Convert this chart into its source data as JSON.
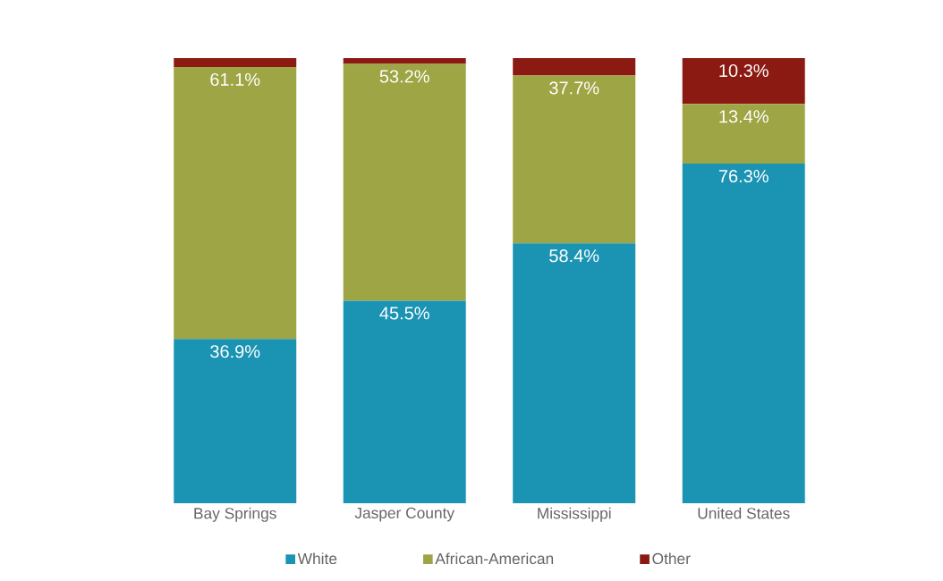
{
  "chart_data": {
    "type": "bar",
    "stacked": true,
    "categories": [
      "Bay Springs",
      "Jasper County",
      "Mississippi",
      "United States"
    ],
    "series": [
      {
        "name": "White",
        "color": "#1b93b3",
        "values": [
          36.9,
          45.5,
          58.4,
          76.3
        ],
        "value_labels": [
          "36.9%",
          "45.5%",
          "58.4%",
          "76.3%"
        ]
      },
      {
        "name": "African-American",
        "color": "#9da544",
        "values": [
          61.1,
          53.2,
          37.7,
          13.4
        ],
        "value_labels": [
          "61.1%",
          "53.2%",
          "37.7%",
          "13.4%"
        ]
      },
      {
        "name": "Other",
        "color": "#8b1a12",
        "values": [
          2.0,
          1.3,
          3.9,
          10.3
        ],
        "value_labels": [
          null,
          null,
          null,
          "10.3%"
        ]
      }
    ],
    "ylim": [
      0,
      100
    ],
    "tick_labels": "x",
    "legend": "bottom",
    "grid": false
  }
}
